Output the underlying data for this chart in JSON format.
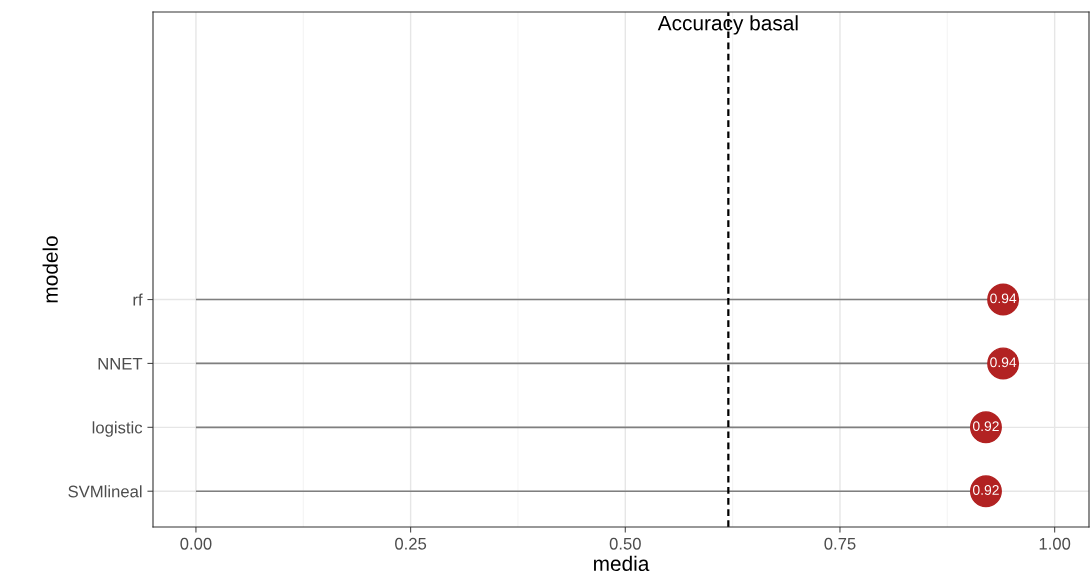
{
  "chart_data": {
    "type": "lollipop",
    "orientation": "horizontal",
    "xlabel": "media",
    "ylabel": "modelo",
    "categories": [
      "rf",
      "NNET",
      "logistic",
      "SVMlineal"
    ],
    "series": [
      {
        "color": "#b22222",
        "values": [
          0.94,
          0.94,
          0.92,
          0.92
        ]
      }
    ],
    "data_labels": true,
    "xlim": [
      -0.05,
      1.04
    ],
    "xticks": [
      {
        "value": 0,
        "label": "0.00"
      },
      0.25,
      {
        "value": 0.5,
        "label": "0.50"
      },
      0.75,
      {
        "value": 1,
        "label": "1.00"
      }
    ],
    "grid": true,
    "marker": "circle",
    "ref_lines": [
      {
        "axis": "x",
        "value": 0.62,
        "label": "Accuracy basal",
        "line_style": "dashed",
        "color": "#000000"
      }
    ]
  }
}
